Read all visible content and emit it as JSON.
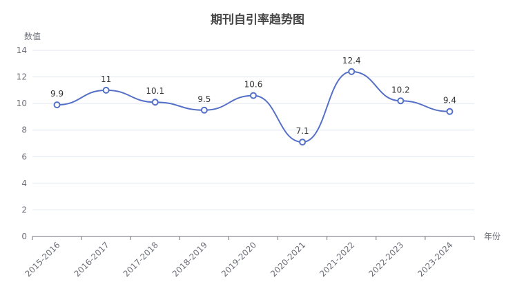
{
  "chart_data": {
    "type": "line",
    "title": "期刊自引率趋势图",
    "xlabel": "年份",
    "ylabel": "数值",
    "categories": [
      "2015-2016",
      "2016-2017",
      "2017-2018",
      "2018-2019",
      "2019-2020",
      "2020-2021",
      "2021-2022",
      "2022-2023",
      "2023-2024"
    ],
    "series": [
      {
        "values": [
          9.9,
          11,
          10.1,
          9.5,
          10.6,
          7.1,
          12.4,
          10.2,
          9.4
        ]
      }
    ],
    "ylim": [
      0,
      14
    ],
    "yticks": [
      0,
      2,
      4,
      6,
      8,
      10,
      12,
      14
    ],
    "data_labels": [
      "9.9",
      "11",
      "10.1",
      "9.5",
      "10.6",
      "7.1",
      "12.4",
      "10.2",
      "9.4"
    ],
    "grid": true,
    "smooth": true,
    "colors": {
      "line": "#5470c6",
      "grid": "#e0e6f1",
      "axis": "#6e7079"
    }
  }
}
